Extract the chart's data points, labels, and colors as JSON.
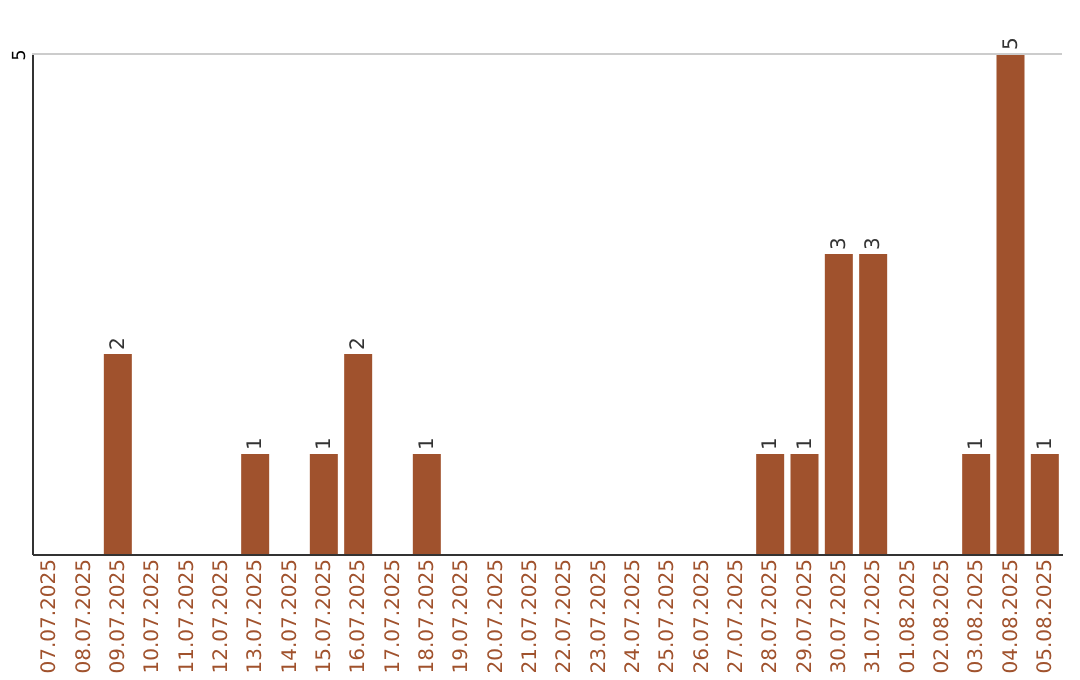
{
  "chart_data": {
    "type": "bar",
    "categories": [
      "07.07.2025",
      "08.07.2025",
      "09.07.2025",
      "10.07.2025",
      "11.07.2025",
      "12.07.2025",
      "13.07.2025",
      "14.07.2025",
      "15.07.2025",
      "16.07.2025",
      "17.07.2025",
      "18.07.2025",
      "19.07.2025",
      "20.07.2025",
      "21.07.2025",
      "22.07.2025",
      "23.07.2025",
      "24.07.2025",
      "25.07.2025",
      "26.07.2025",
      "27.07.2025",
      "28.07.2025",
      "29.07.2025",
      "30.07.2025",
      "31.07.2025",
      "01.08.2025",
      "02.08.2025",
      "03.08.2025",
      "04.08.2025",
      "05.08.2025"
    ],
    "values": [
      0,
      0,
      2,
      0,
      0,
      0,
      1,
      0,
      1,
      2,
      0,
      1,
      0,
      0,
      0,
      0,
      0,
      0,
      0,
      0,
      0,
      1,
      1,
      3,
      3,
      0,
      0,
      1,
      5,
      1
    ],
    "value_labels": [
      null,
      null,
      "2",
      null,
      null,
      null,
      "1",
      null,
      "1",
      "2",
      null,
      "1",
      null,
      null,
      null,
      null,
      null,
      null,
      null,
      null,
      null,
      "1",
      "1",
      "3",
      "3",
      null,
      null,
      "1",
      "5",
      "1"
    ],
    "color": "#a0522d",
    "ylim": [
      0,
      5
    ],
    "yticks": [
      5
    ],
    "ref_lines": [
      {
        "axis": "y",
        "value": 5,
        "color": "#cccccc"
      }
    ]
  }
}
